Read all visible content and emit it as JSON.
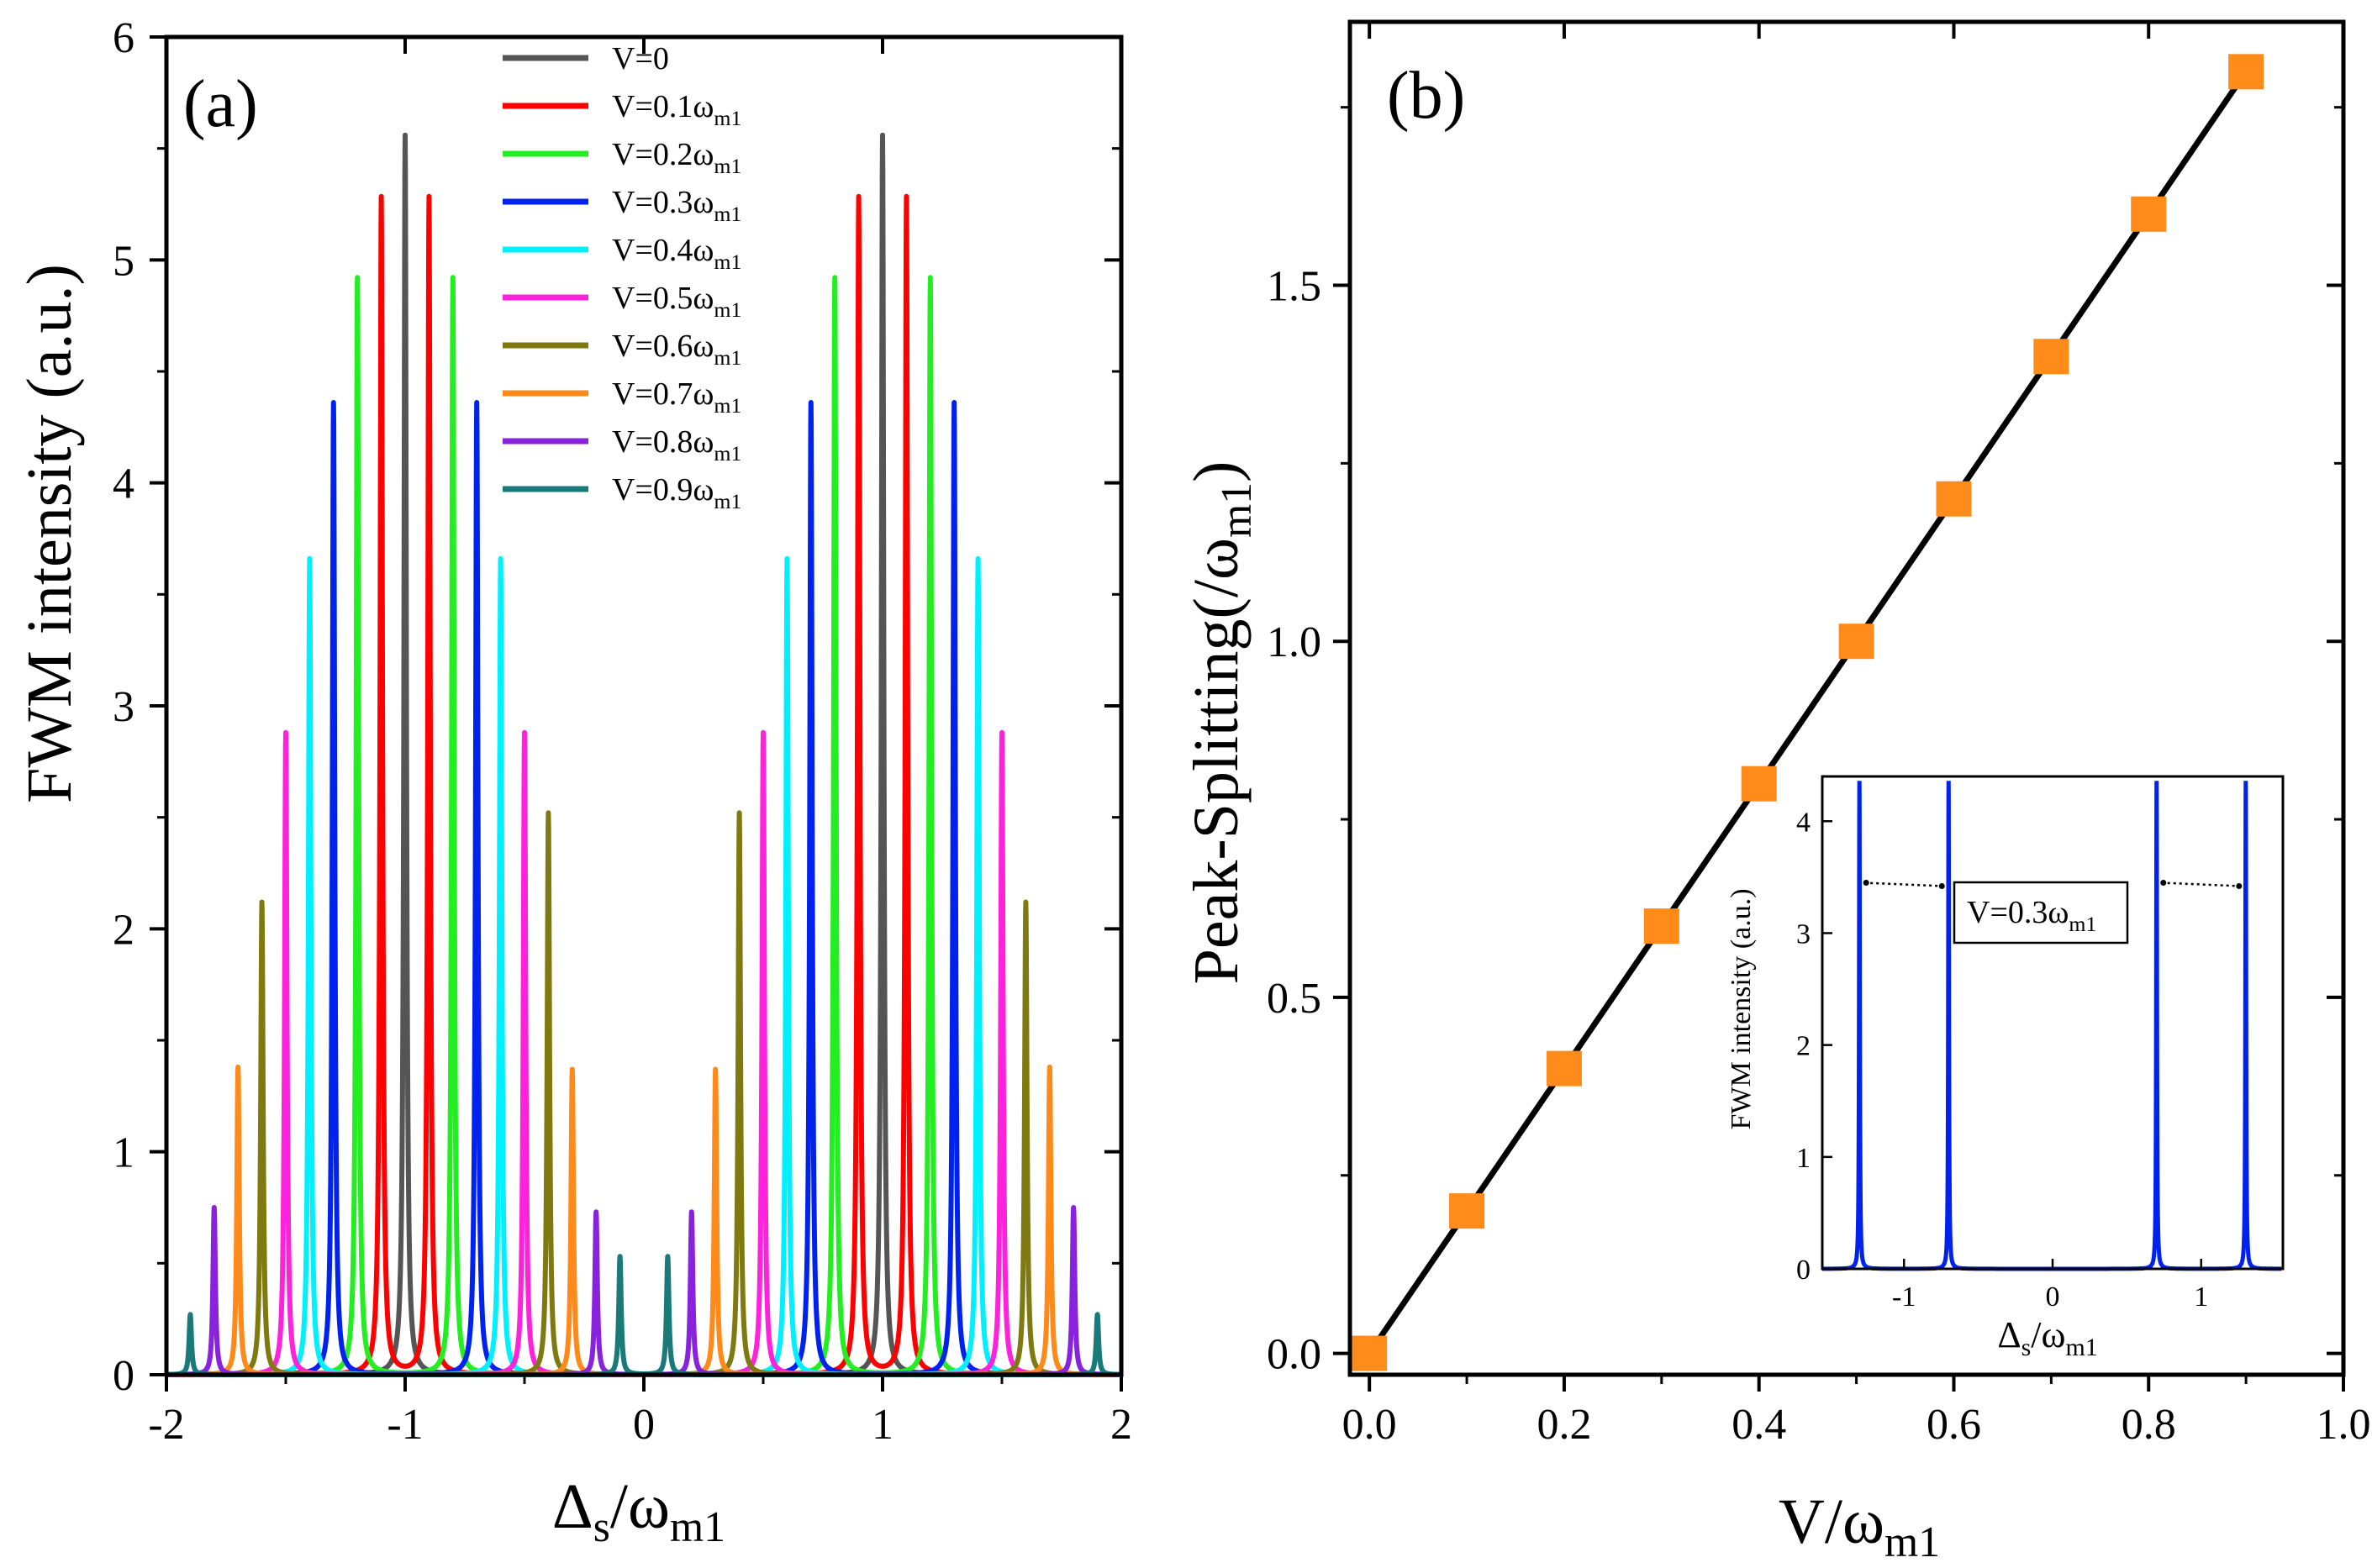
{
  "chart_data": [
    {
      "panel": "(a)",
      "type": "line",
      "xlabel": "Δs/ωm1",
      "ylabel": "FWM intensity (a.u.)",
      "xlim": [
        -2,
        2
      ],
      "ylim": [
        0,
        6
      ],
      "xticks": [
        -2,
        -1,
        0,
        1,
        2
      ],
      "yticks": [
        0,
        1,
        2,
        3,
        4,
        5,
        6
      ],
      "legend_position": "top-center",
      "line_width_data": 0.006,
      "series": [
        {
          "name": "V=0",
          "label": "V=0",
          "sub": "",
          "color": "#555555",
          "splitting": 0.0,
          "peaks": [
            {
              "x": -1.0,
              "y": 5.56
            },
            {
              "x": 1.0,
              "y": 5.56
            }
          ]
        },
        {
          "name": "V=0.1ωm1",
          "label": "V=0.1ω",
          "sub": "m1",
          "color": "#ff0000",
          "splitting": 0.1,
          "peaks": [
            {
              "x": -1.1,
              "y": 5.28
            },
            {
              "x": -0.9,
              "y": 5.28
            },
            {
              "x": 0.9,
              "y": 5.28
            },
            {
              "x": 1.1,
              "y": 5.28
            }
          ]
        },
        {
          "name": "V=0.2ωm1",
          "label": "V=0.2ω",
          "sub": "m1",
          "color": "#22ee22",
          "splitting": 0.2,
          "peaks": [
            {
              "x": -1.2,
              "y": 4.92
            },
            {
              "x": -0.8,
              "y": 4.92
            },
            {
              "x": 0.8,
              "y": 4.92
            },
            {
              "x": 1.2,
              "y": 4.92
            }
          ]
        },
        {
          "name": "V=0.3ωm1",
          "label": "V=0.3ω",
          "sub": "m1",
          "color": "#0022ee",
          "splitting": 0.3,
          "peaks": [
            {
              "x": -1.3,
              "y": 4.36
            },
            {
              "x": -0.7,
              "y": 4.36
            },
            {
              "x": 0.7,
              "y": 4.36
            },
            {
              "x": 1.3,
              "y": 4.36
            }
          ]
        },
        {
          "name": "V=0.4ωm1",
          "label": "V=0.4ω",
          "sub": "m1",
          "color": "#00f0ff",
          "splitting": 0.4,
          "peaks": [
            {
              "x": -1.4,
              "y": 3.66
            },
            {
              "x": -0.6,
              "y": 3.66
            },
            {
              "x": 0.6,
              "y": 3.66
            },
            {
              "x": 1.4,
              "y": 3.66
            }
          ]
        },
        {
          "name": "V=0.5ωm1",
          "label": "V=0.5ω",
          "sub": "m1",
          "color": "#ff22dd",
          "splitting": 0.5,
          "peaks": [
            {
              "x": -1.5,
              "y": 2.88
            },
            {
              "x": -0.5,
              "y": 2.88
            },
            {
              "x": 0.5,
              "y": 2.88
            },
            {
              "x": 1.5,
              "y": 2.88
            }
          ]
        },
        {
          "name": "V=0.6ωm1",
          "label": "V=0.6ω",
          "sub": "m1",
          "color": "#7f7a10",
          "splitting": 0.6,
          "peaks": [
            {
              "x": -1.6,
              "y": 2.12
            },
            {
              "x": -0.4,
              "y": 2.52
            },
            {
              "x": 0.4,
              "y": 2.52
            },
            {
              "x": 1.6,
              "y": 2.12
            }
          ]
        },
        {
          "name": "V=0.7ωm1",
          "label": "V=0.7ω",
          "sub": "m1",
          "color": "#ff8a1a",
          "splitting": 0.7,
          "peaks": [
            {
              "x": -1.7,
              "y": 1.38
            },
            {
              "x": -0.3,
              "y": 1.37
            },
            {
              "x": 0.3,
              "y": 1.37
            },
            {
              "x": 1.7,
              "y": 1.38
            }
          ]
        },
        {
          "name": "V=0.8ωm1",
          "label": "V=0.8ω",
          "sub": "m1",
          "color": "#8822dd",
          "splitting": 0.8,
          "peaks": [
            {
              "x": -1.8,
              "y": 0.75
            },
            {
              "x": -0.2,
              "y": 0.73
            },
            {
              "x": 0.2,
              "y": 0.73
            },
            {
              "x": 1.8,
              "y": 0.75
            }
          ]
        },
        {
          "name": "V=0.9ωm1",
          "label": "V=0.9ω",
          "sub": "m1",
          "color": "#1a7a7a",
          "splitting": 0.9,
          "peaks": [
            {
              "x": -1.9,
              "y": 0.27
            },
            {
              "x": -0.1,
              "y": 0.53
            },
            {
              "x": 0.1,
              "y": 0.53
            },
            {
              "x": 1.9,
              "y": 0.27
            }
          ]
        }
      ]
    },
    {
      "panel": "(b)",
      "type": "scatter",
      "xlabel": "V/ωm1",
      "ylabel": "Peak-Splitting(/ωm1)",
      "xlim": [
        -0.02,
        1.0
      ],
      "ylim": [
        -0.03,
        1.87
      ],
      "xticks": [
        0.0,
        0.2,
        0.4,
        0.6,
        0.8,
        1.0
      ],
      "yticks": [
        0.0,
        0.5,
        1.0,
        1.5
      ],
      "marker_color": "#ff8c1a",
      "line_color": "#000000",
      "x": [
        0.0,
        0.1,
        0.2,
        0.3,
        0.4,
        0.5,
        0.6,
        0.7,
        0.8,
        0.9
      ],
      "y": [
        0.0,
        0.2,
        0.4,
        0.6,
        0.8,
        1.0,
        1.2,
        1.4,
        1.6,
        1.8
      ]
    },
    {
      "panel": "inset",
      "type": "line",
      "xlabel": "Δs/ωm1",
      "ylabel": "FWM intensity (a.u.)",
      "xlim": [
        -1.55,
        1.55
      ],
      "ylim": [
        0,
        4.4
      ],
      "xticks": [
        -1,
        0,
        1
      ],
      "yticks": [
        0,
        1,
        2,
        3,
        4
      ],
      "annotation": "V=0.3ωm1",
      "color": "#0022ee",
      "peaks": [
        {
          "x": -1.3,
          "y": 4.36
        },
        {
          "x": -0.7,
          "y": 4.36
        },
        {
          "x": 0.7,
          "y": 4.36
        },
        {
          "x": 1.3,
          "y": 4.36
        }
      ],
      "arrow_y": 3.45
    }
  ]
}
